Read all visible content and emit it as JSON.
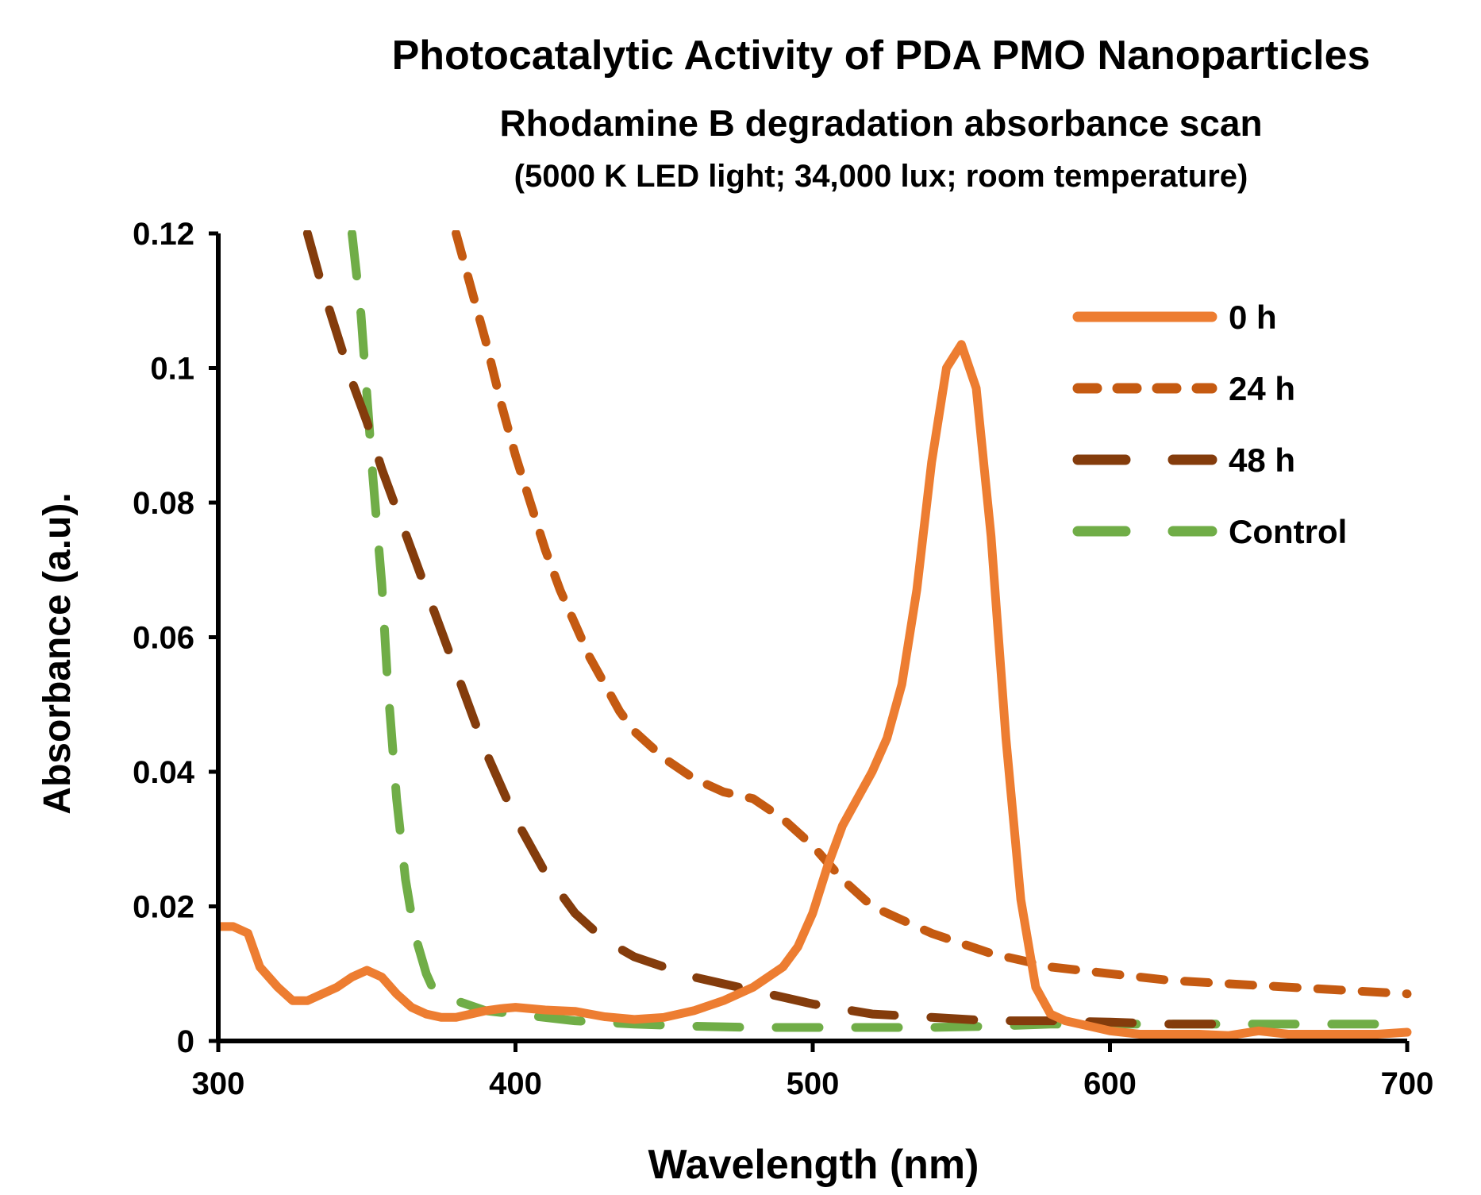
{
  "chart_data": {
    "type": "line",
    "title": "Photocatalytic Activity of PDA PMO Nanoparticles",
    "subtitle": "Rhodamine B degradation absorbance scan",
    "subtitle2": "(5000 K LED light; 34,000 lux; room temperature)",
    "xlabel": "Wavelength (nm)",
    "ylabel": "Absorbance (a.u).",
    "xlim": [
      300,
      700
    ],
    "ylim": [
      0,
      0.12
    ],
    "xticks": [
      300,
      400,
      500,
      600,
      700
    ],
    "xtick_labels": [
      "300",
      "400",
      "500",
      "600",
      "700"
    ],
    "yticks": [
      0,
      0.02,
      0.04,
      0.06,
      0.08,
      0.1,
      0.12
    ],
    "ytick_labels": [
      "0",
      "0.02",
      "0.04",
      "0.06",
      "0.08",
      "0.1",
      "0.12"
    ],
    "grid": false,
    "legend_position": "top-right",
    "series": [
      {
        "name": "0 h",
        "color": "#ED7D31",
        "style": "solid",
        "x": [
          300,
          305,
          310,
          314,
          320,
          325,
          330,
          335,
          340,
          345,
          350,
          355,
          360,
          365,
          370,
          375,
          380,
          385,
          390,
          395,
          400,
          410,
          420,
          430,
          440,
          450,
          460,
          470,
          480,
          490,
          495,
          500,
          505,
          510,
          515,
          520,
          525,
          530,
          535,
          540,
          545,
          550,
          555,
          560,
          565,
          570,
          575,
          580,
          585,
          590,
          595,
          600,
          610,
          620,
          630,
          640,
          650,
          660,
          670,
          680,
          690,
          700
        ],
        "y": [
          0.017,
          0.017,
          0.016,
          0.011,
          0.008,
          0.006,
          0.006,
          0.007,
          0.008,
          0.0095,
          0.0105,
          0.0095,
          0.007,
          0.005,
          0.004,
          0.0035,
          0.0035,
          0.004,
          0.0045,
          0.0048,
          0.005,
          0.0046,
          0.0044,
          0.0036,
          0.0032,
          0.0035,
          0.0045,
          0.006,
          0.008,
          0.011,
          0.014,
          0.019,
          0.026,
          0.032,
          0.036,
          0.04,
          0.045,
          0.053,
          0.067,
          0.086,
          0.1,
          0.1035,
          0.097,
          0.075,
          0.045,
          0.021,
          0.008,
          0.004,
          0.003,
          0.0025,
          0.002,
          0.0015,
          0.001,
          0.001,
          0.001,
          0.0008,
          0.0015,
          0.001,
          0.001,
          0.001,
          0.001,
          0.0013
        ]
      },
      {
        "name": "24 h",
        "color": "#C55A11",
        "style": "dash",
        "x": [
          380,
          385,
          390,
          395,
          400,
          405,
          410,
          415,
          420,
          425,
          430,
          435,
          440,
          450,
          460,
          470,
          480,
          490,
          500,
          510,
          520,
          530,
          540,
          550,
          560,
          570,
          580,
          590,
          600,
          620,
          640,
          660,
          680,
          700
        ],
        "y": [
          0.12,
          0.112,
          0.104,
          0.095,
          0.087,
          0.08,
          0.073,
          0.067,
          0.062,
          0.057,
          0.053,
          0.049,
          0.046,
          0.042,
          0.039,
          0.037,
          0.036,
          0.033,
          0.029,
          0.024,
          0.02,
          0.018,
          0.016,
          0.0145,
          0.013,
          0.012,
          0.011,
          0.0105,
          0.01,
          0.009,
          0.0085,
          0.008,
          0.0075,
          0.007
        ]
      },
      {
        "name": "48 h",
        "color": "#843C0C",
        "style": "long-dash",
        "x": [
          330,
          335,
          340,
          345,
          350,
          355,
          360,
          365,
          370,
          375,
          380,
          385,
          390,
          395,
          400,
          410,
          420,
          430,
          440,
          450,
          460,
          470,
          480,
          490,
          500,
          520,
          540,
          560,
          580,
          600,
          620,
          640
        ],
        "y": [
          0.12,
          0.112,
          0.105,
          0.098,
          0.092,
          0.085,
          0.079,
          0.073,
          0.067,
          0.061,
          0.055,
          0.049,
          0.043,
          0.038,
          0.033,
          0.025,
          0.019,
          0.015,
          0.0125,
          0.011,
          0.0095,
          0.0085,
          0.0075,
          0.0065,
          0.0055,
          0.004,
          0.0035,
          0.003,
          0.003,
          0.0028,
          0.0025,
          0.0025
        ]
      },
      {
        "name": "Control",
        "color": "#70AD47",
        "style": "long-dash",
        "x": [
          345,
          348,
          350,
          352,
          355,
          357,
          360,
          363,
          366,
          370,
          373,
          380,
          390,
          400,
          420,
          440,
          460,
          480,
          500,
          520,
          540,
          560,
          580,
          600,
          620,
          640,
          660,
          680,
          700
        ],
        "y": [
          0.12,
          0.108,
          0.096,
          0.084,
          0.068,
          0.053,
          0.036,
          0.024,
          0.016,
          0.01,
          0.007,
          0.006,
          0.0045,
          0.004,
          0.003,
          0.0025,
          0.0022,
          0.002,
          0.002,
          0.002,
          0.002,
          0.0022,
          0.0025,
          0.0025,
          0.0025,
          0.0025,
          0.0025,
          0.0025,
          0.0025
        ]
      }
    ]
  }
}
